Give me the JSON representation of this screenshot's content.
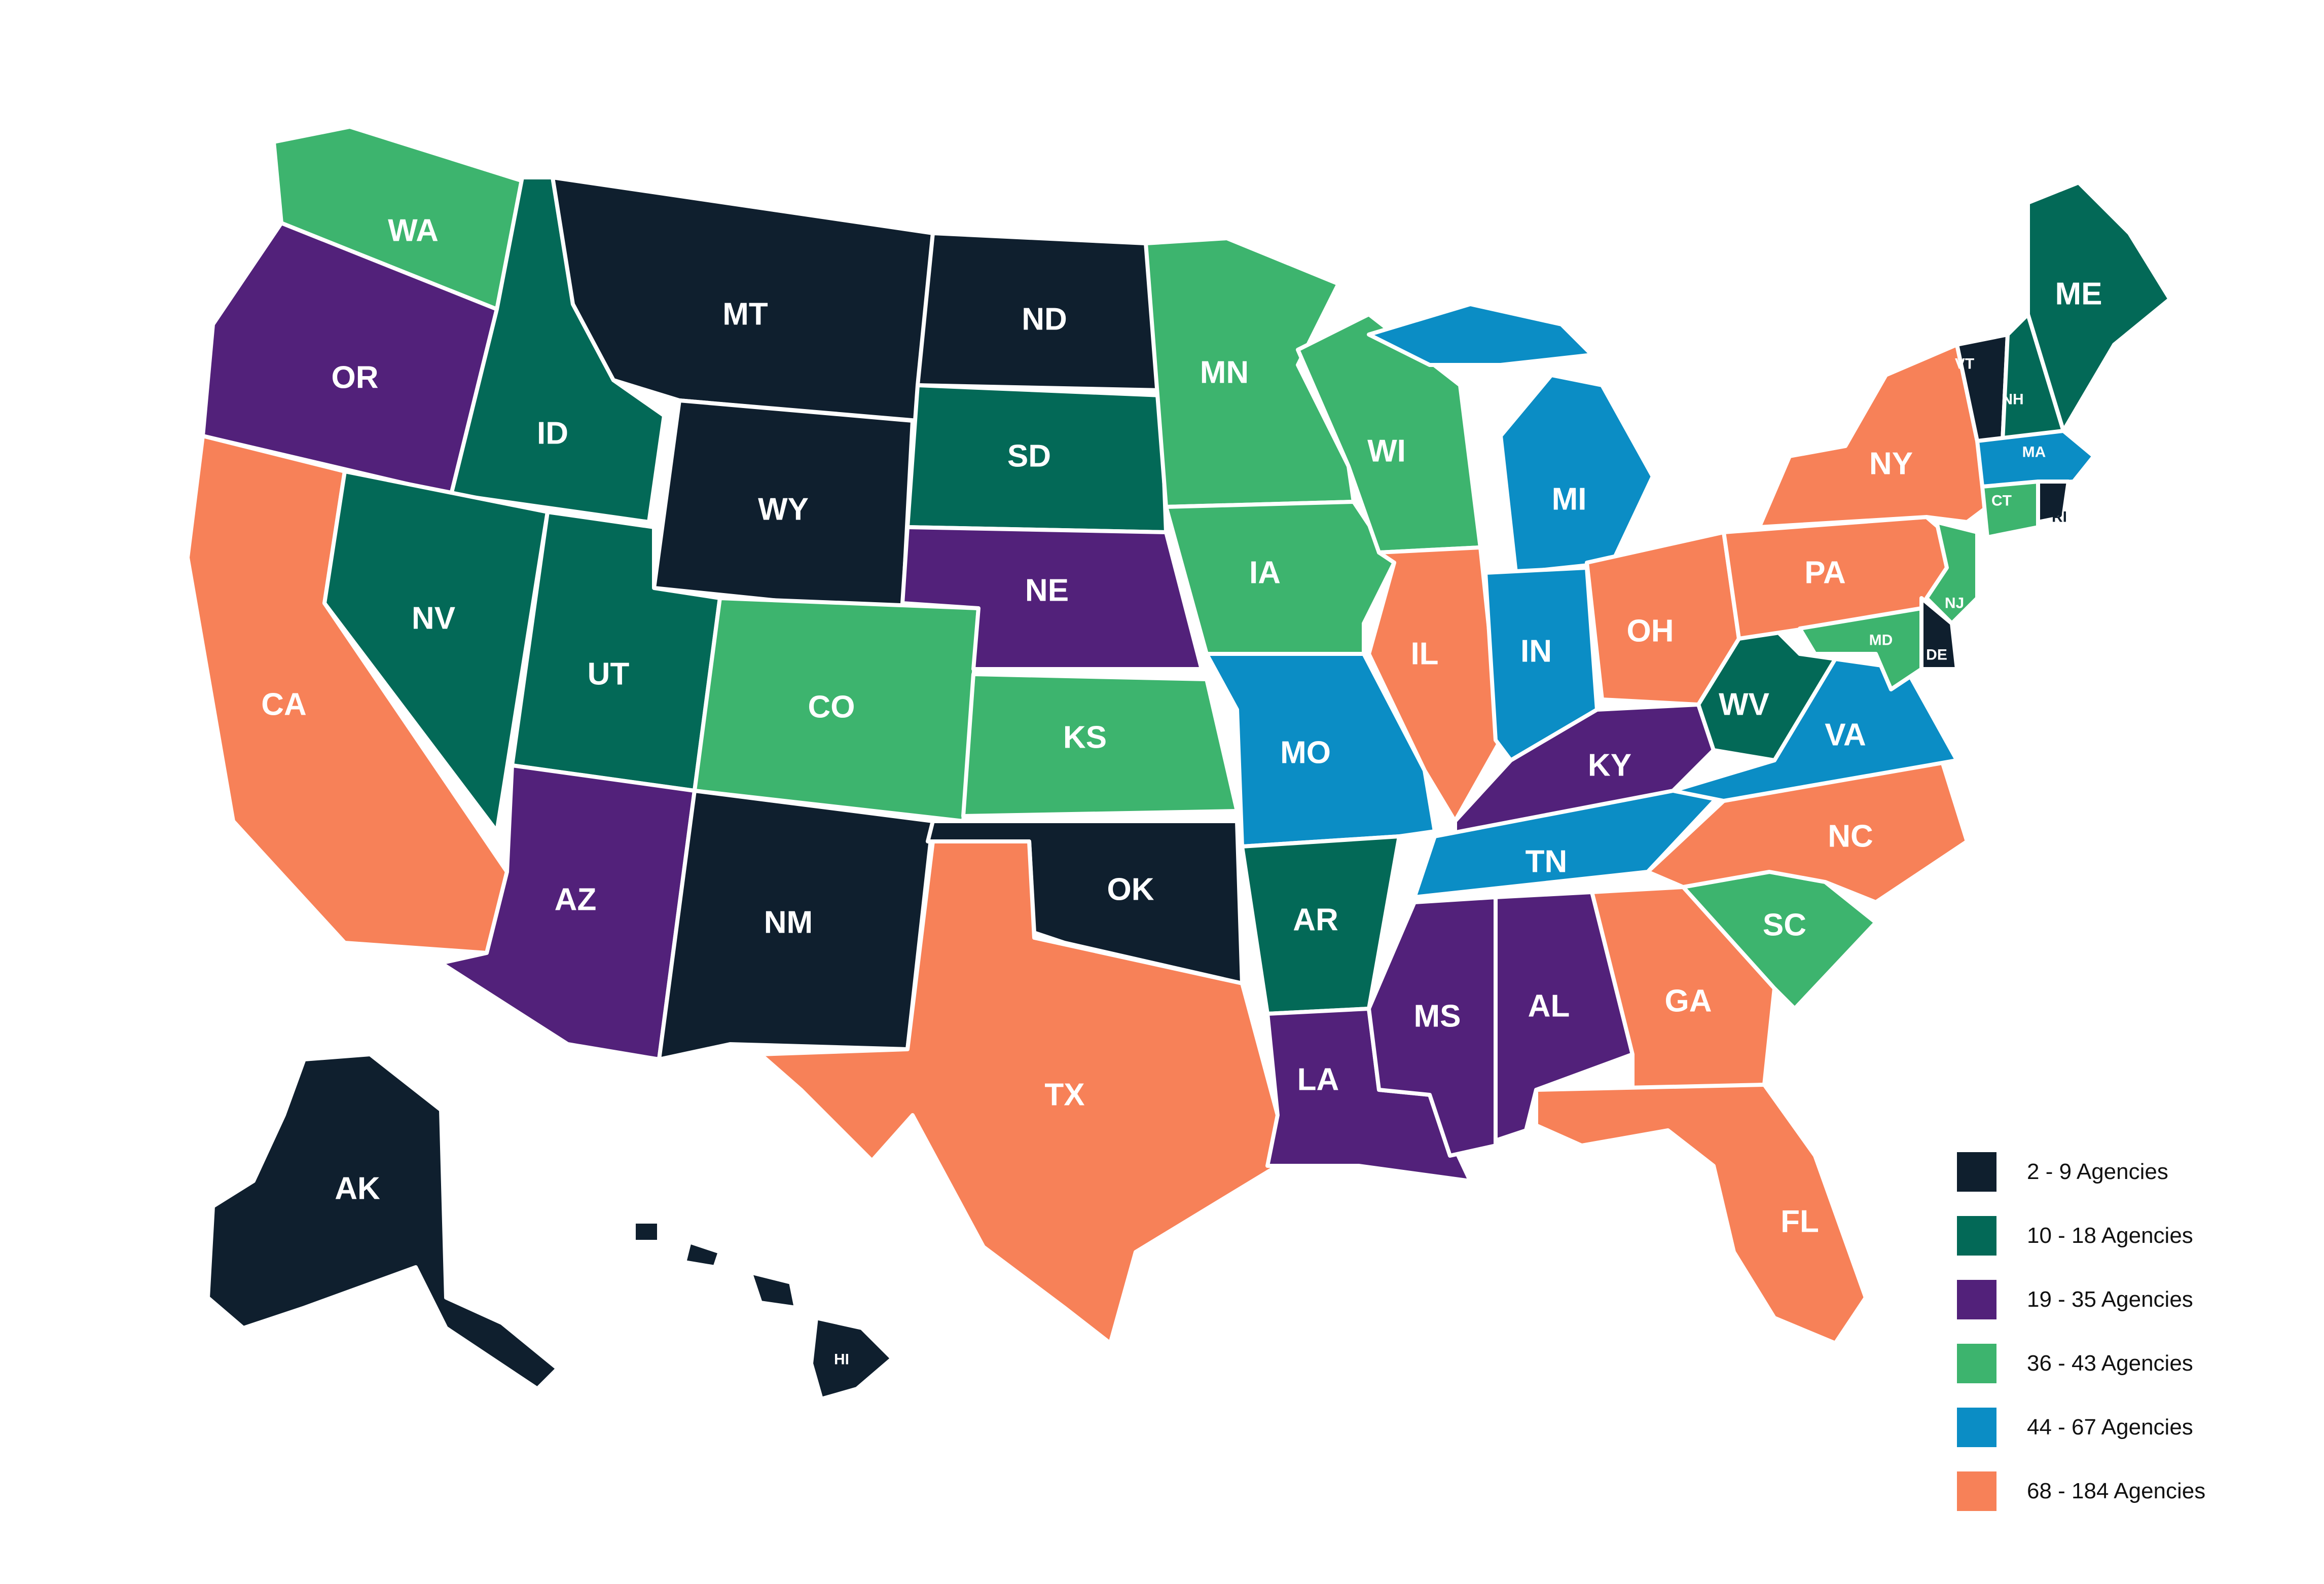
{
  "colors": {
    "c1": "#0f1f2e",
    "c2": "#036957",
    "c3": "#52217a",
    "c4": "#3db46e",
    "c5": "#0b8dc5",
    "c6": "#f78158",
    "border": "#ffffff"
  },
  "legend": [
    {
      "label": "2 - 9 Agencies",
      "category": "c1"
    },
    {
      "label": "10 - 18 Agencies",
      "category": "c2"
    },
    {
      "label": "19 - 35 Agencies",
      "category": "c3"
    },
    {
      "label": "36 - 43 Agencies",
      "category": "c4"
    },
    {
      "label": "44 - 67 Agencies",
      "category": "c5"
    },
    {
      "label": "68 - 184 Agencies",
      "category": "c6"
    }
  ],
  "states": [
    {
      "abbr": "WA",
      "category": "c4"
    },
    {
      "abbr": "OR",
      "category": "c3"
    },
    {
      "abbr": "CA",
      "category": "c6"
    },
    {
      "abbr": "ID",
      "category": "c2"
    },
    {
      "abbr": "NV",
      "category": "c2"
    },
    {
      "abbr": "MT",
      "category": "c1"
    },
    {
      "abbr": "WY",
      "category": "c1"
    },
    {
      "abbr": "UT",
      "category": "c2"
    },
    {
      "abbr": "AZ",
      "category": "c3"
    },
    {
      "abbr": "CO",
      "category": "c4"
    },
    {
      "abbr": "NM",
      "category": "c1"
    },
    {
      "abbr": "ND",
      "category": "c1"
    },
    {
      "abbr": "SD",
      "category": "c2"
    },
    {
      "abbr": "NE",
      "category": "c3"
    },
    {
      "abbr": "KS",
      "category": "c4"
    },
    {
      "abbr": "OK",
      "category": "c1"
    },
    {
      "abbr": "TX",
      "category": "c6"
    },
    {
      "abbr": "MN",
      "category": "c4"
    },
    {
      "abbr": "IA",
      "category": "c4"
    },
    {
      "abbr": "MO",
      "category": "c5"
    },
    {
      "abbr": "AR",
      "category": "c2"
    },
    {
      "abbr": "LA",
      "category": "c3"
    },
    {
      "abbr": "WI",
      "category": "c4"
    },
    {
      "abbr": "IL",
      "category": "c6"
    },
    {
      "abbr": "MI",
      "category": "c5"
    },
    {
      "abbr": "IN",
      "category": "c5"
    },
    {
      "abbr": "OH",
      "category": "c6"
    },
    {
      "abbr": "KY",
      "category": "c3"
    },
    {
      "abbr": "TN",
      "category": "c5"
    },
    {
      "abbr": "MS",
      "category": "c3"
    },
    {
      "abbr": "AL",
      "category": "c3"
    },
    {
      "abbr": "GA",
      "category": "c6"
    },
    {
      "abbr": "FL",
      "category": "c6"
    },
    {
      "abbr": "SC",
      "category": "c4"
    },
    {
      "abbr": "NC",
      "category": "c6"
    },
    {
      "abbr": "VA",
      "category": "c5"
    },
    {
      "abbr": "WV",
      "category": "c2"
    },
    {
      "abbr": "PA",
      "category": "c6"
    },
    {
      "abbr": "NY",
      "category": "c6"
    },
    {
      "abbr": "VT",
      "category": "c1"
    },
    {
      "abbr": "NH",
      "category": "c2"
    },
    {
      "abbr": "ME",
      "category": "c2"
    },
    {
      "abbr": "MA",
      "category": "c5"
    },
    {
      "abbr": "RI",
      "category": "c1"
    },
    {
      "abbr": "CT",
      "category": "c4"
    },
    {
      "abbr": "NJ",
      "category": "c4"
    },
    {
      "abbr": "DE",
      "category": "c1"
    },
    {
      "abbr": "MD",
      "category": "c4"
    },
    {
      "abbr": "AK",
      "category": "c1"
    },
    {
      "abbr": "HI",
      "category": "c1"
    }
  ]
}
